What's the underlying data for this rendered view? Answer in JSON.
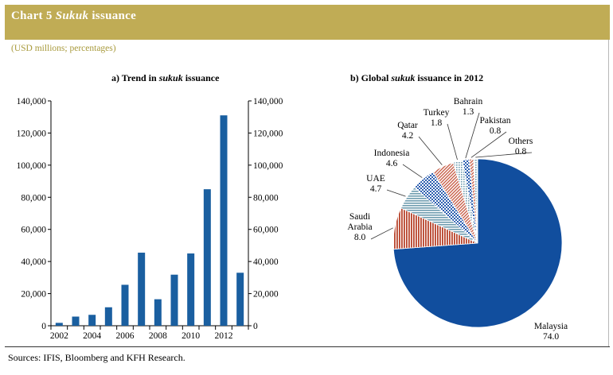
{
  "header": {
    "chart_no": "Chart 5",
    "title_italic": "Sukuk",
    "title_rest": "issuance"
  },
  "subtitle": "(USD millions; percentages)",
  "footer": "Sources: IFIS, Bloomberg and KFH Research.",
  "colors": {
    "bar": "#1a5fa0",
    "header_bg": "#c0ac55",
    "subtitle": "#a89a3c"
  },
  "chart_data": [
    {
      "type": "bar",
      "title_parts": [
        "a) Trend in ",
        "sukuk",
        " issuance"
      ],
      "categories": [
        "2002",
        "2003",
        "2004",
        "2005",
        "2006",
        "2007",
        "2008",
        "2009",
        "2010",
        "2011",
        "2012",
        "2013"
      ],
      "x_tick_labels": [
        "2002",
        "2004",
        "2006",
        "2008",
        "2010",
        "2012"
      ],
      "values": [
        1800,
        5700,
        6800,
        11500,
        25500,
        45500,
        16500,
        31800,
        45000,
        85000,
        131000,
        33000
      ],
      "ylim": [
        0,
        140000
      ],
      "y_ticks": [
        0,
        20000,
        40000,
        60000,
        80000,
        100000,
        120000,
        140000
      ],
      "y_tick_labels": [
        "0",
        "20,000",
        "40,000",
        "60,000",
        "80,000",
        "100,000",
        "120,000",
        "140,000"
      ],
      "right_axis": true,
      "grid": false
    },
    {
      "type": "pie",
      "title_parts": [
        "b) Global ",
        "sukuk",
        " issuance in 2012"
      ],
      "slices": [
        {
          "name": "Malaysia",
          "value": "74.0",
          "fill": "#114e9e"
        },
        {
          "name": "Saudi Arabia",
          "name_lines": [
            "Saudi",
            "Arabia"
          ],
          "value": "8.0",
          "fill": "#b8442c",
          "pattern": "vlines"
        },
        {
          "name": "UAE",
          "value": "4.7",
          "fill": "#7faab8",
          "pattern": "hlines"
        },
        {
          "name": "Indonesia",
          "value": "4.6",
          "fill": "#3e6fb8",
          "pattern": "checker"
        },
        {
          "name": "Qatar",
          "value": "4.2",
          "fill": "#c8604a",
          "pattern": "dlines"
        },
        {
          "name": "Turkey",
          "value": "1.8",
          "fill": "#8cb0c4",
          "pattern": "dots"
        },
        {
          "name": "Bahrain",
          "value": "1.3",
          "fill": "#2a5aa8",
          "pattern": "checker"
        },
        {
          "name": "Pakistan",
          "value": "0.8",
          "fill": "#3b7bc8",
          "pattern": "dlines"
        },
        {
          "name": "Others",
          "value": "0.8",
          "fill": "#e8eef6",
          "pattern": "dots"
        }
      ]
    }
  ]
}
